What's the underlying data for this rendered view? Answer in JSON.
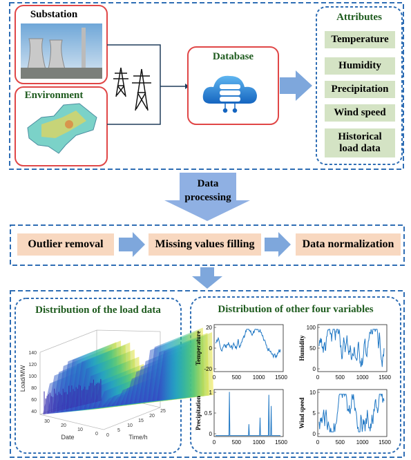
{
  "sources": [
    {
      "label": "Substation"
    },
    {
      "label": "Environment"
    }
  ],
  "database": {
    "label": "Database"
  },
  "attributes": {
    "title": "Attributes",
    "items": [
      "Temperature",
      "Humidity",
      "Precipitation",
      "Wind speed",
      "Historical load data"
    ]
  },
  "processing_arrow": {
    "label": "Data processing"
  },
  "steps": [
    "Outlier removal",
    "Missing values filling",
    "Data normalization"
  ],
  "load_panel": {
    "title": "Distribution of the load data",
    "z_label": "Load/MW",
    "z_ticks": [
      "40",
      "60",
      "80",
      "100",
      "120",
      "140"
    ],
    "x_label": "Date",
    "x_ticks": [
      "30",
      "20",
      "10",
      "0"
    ],
    "y_label": "Time/h",
    "y_ticks": [
      "0",
      "5",
      "10",
      "15",
      "20",
      "25"
    ]
  },
  "variables_panel": {
    "title": "Distribution of other four variables",
    "plots": [
      {
        "y_label": "Temperature",
        "y_ticks": [
          "20",
          "0",
          "-20"
        ],
        "x_ticks": [
          "0",
          "500",
          "1000",
          "1500"
        ]
      },
      {
        "y_label": "Humidity",
        "y_ticks": [
          "100",
          "50",
          "0"
        ],
        "x_ticks": [
          "0",
          "500",
          "1000",
          "1500"
        ]
      },
      {
        "y_label": "Precipitation",
        "y_ticks": [
          "1",
          "0.5",
          "0"
        ],
        "x_ticks": [
          "0",
          "500",
          "1000",
          "1500"
        ]
      },
      {
        "y_label": "Wind speed",
        "y_ticks": [
          "10",
          "5",
          "0"
        ],
        "x_ticks": [
          "0",
          "500",
          "1000",
          "1500"
        ]
      }
    ]
  }
}
